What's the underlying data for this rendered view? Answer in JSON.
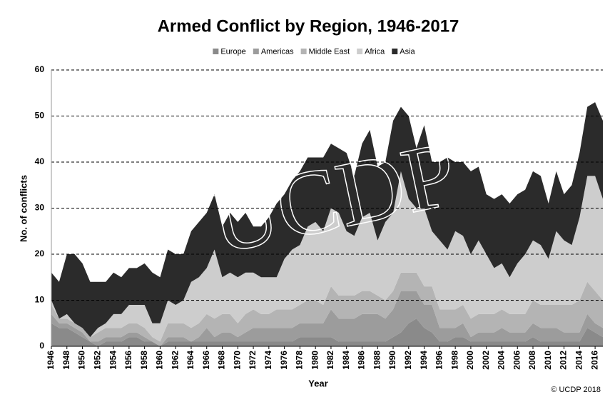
{
  "chart_data": {
    "type": "stacked_area",
    "title": "Armed Conflict by Region, 1946-2017",
    "x_label": "Year",
    "y_label": "No. of conflicts",
    "watermark": "UCDP",
    "credit": "© UCDP 2018",
    "legend": "top",
    "grid": true,
    "x": [
      1946,
      1947,
      1948,
      1949,
      1950,
      1951,
      1952,
      1953,
      1954,
      1955,
      1956,
      1957,
      1958,
      1959,
      1960,
      1961,
      1962,
      1963,
      1964,
      1965,
      1966,
      1967,
      1968,
      1969,
      1970,
      1971,
      1972,
      1973,
      1974,
      1975,
      1976,
      1977,
      1978,
      1979,
      1980,
      1981,
      1982,
      1983,
      1984,
      1985,
      1986,
      1987,
      1988,
      1989,
      1990,
      1991,
      1992,
      1993,
      1994,
      1995,
      1996,
      1997,
      1998,
      1999,
      2000,
      2001,
      2002,
      2003,
      2004,
      2005,
      2006,
      2007,
      2008,
      2009,
      2010,
      2011,
      2012,
      2013,
      2014,
      2015,
      2016,
      2017
    ],
    "xlim": [
      1946,
      2017
    ],
    "xticks": [
      1946,
      1948,
      1950,
      1952,
      1954,
      1956,
      1958,
      1960,
      1962,
      1964,
      1966,
      1968,
      1970,
      1972,
      1974,
      1976,
      1978,
      1980,
      1982,
      1984,
      1986,
      1988,
      1990,
      1992,
      1994,
      1996,
      1998,
      2000,
      2002,
      2004,
      2006,
      2008,
      2010,
      2012,
      2014,
      2016
    ],
    "ylim": [
      0,
      60
    ],
    "yticks": [
      0,
      10,
      20,
      30,
      40,
      50,
      60
    ],
    "series": [
      {
        "name": "Europe",
        "color": "#8a8a8a",
        "values": [
          5,
          4,
          4,
          3,
          2,
          1,
          0,
          1,
          1,
          1,
          2,
          2,
          1,
          1,
          0,
          1,
          1,
          1,
          1,
          1,
          1,
          1,
          1,
          1,
          1,
          1,
          1,
          1,
          1,
          1,
          1,
          1,
          2,
          2,
          2,
          2,
          2,
          1,
          1,
          1,
          1,
          1,
          1,
          1,
          2,
          3,
          5,
          6,
          4,
          3,
          1,
          1,
          2,
          2,
          1,
          1,
          1,
          1,
          1,
          1,
          1,
          1,
          2,
          1,
          1,
          1,
          1,
          1,
          1,
          4,
          3,
          2
        ]
      },
      {
        "name": "Americas",
        "color": "#9c9c9c",
        "values": [
          2,
          1,
          1,
          1,
          1,
          0,
          1,
          1,
          1,
          1,
          1,
          1,
          1,
          0,
          0,
          1,
          1,
          1,
          0,
          1,
          3,
          1,
          2,
          2,
          1,
          2,
          3,
          3,
          3,
          3,
          3,
          3,
          3,
          3,
          3,
          3,
          6,
          5,
          5,
          5,
          6,
          6,
          6,
          5,
          6,
          9,
          7,
          6,
          5,
          6,
          3,
          3,
          2,
          3,
          1,
          2,
          2,
          2,
          3,
          2,
          2,
          2,
          3,
          3,
          3,
          3,
          2,
          2,
          2,
          3,
          2,
          2
        ]
      },
      {
        "name": "Middle East",
        "color": "#b4b4b4",
        "values": [
          2,
          1,
          1,
          1,
          1,
          1,
          2,
          2,
          2,
          2,
          2,
          2,
          2,
          1,
          1,
          3,
          3,
          3,
          3,
          3,
          3,
          4,
          4,
          4,
          3,
          4,
          4,
          3,
          3,
          4,
          4,
          4,
          4,
          5,
          5,
          4,
          5,
          5,
          5,
          5,
          5,
          5,
          4,
          4,
          4,
          4,
          4,
          4,
          4,
          4,
          4,
          4,
          4,
          4,
          4,
          4,
          4,
          4,
          4,
          4,
          4,
          4,
          5,
          5,
          5,
          5,
          6,
          6,
          7,
          7,
          7,
          6
        ]
      },
      {
        "name": "Africa",
        "color": "#cdcdcd",
        "values": [
          1,
          0,
          1,
          0,
          0,
          0,
          1,
          1,
          3,
          3,
          4,
          4,
          5,
          3,
          4,
          5,
          4,
          5,
          10,
          10,
          10,
          15,
          8,
          9,
          10,
          9,
          8,
          8,
          8,
          7,
          11,
          13,
          13,
          16,
          17,
          16,
          17,
          18,
          14,
          13,
          16,
          17,
          12,
          17,
          17,
          22,
          16,
          14,
          17,
          12,
          15,
          13,
          17,
          15,
          14,
          16,
          13,
          10,
          10,
          8,
          11,
          13,
          13,
          13,
          10,
          16,
          14,
          13,
          18,
          23,
          25,
          22
        ]
      },
      {
        "name": "Asia",
        "color": "#2b2b2b",
        "values": [
          6,
          8,
          13,
          15,
          14,
          12,
          10,
          9,
          9,
          8,
          8,
          8,
          9,
          11,
          10,
          11,
          11,
          10,
          11,
          12,
          12,
          12,
          11,
          13,
          12,
          13,
          10,
          11,
          13,
          16,
          14,
          15,
          16,
          15,
          14,
          16,
          14,
          14,
          17,
          13,
          16,
          18,
          16,
          13,
          20,
          14,
          18,
          13,
          18,
          15,
          17,
          20,
          15,
          16,
          18,
          16,
          13,
          15,
          15,
          16,
          15,
          14,
          15,
          15,
          12,
          13,
          10,
          13,
          14,
          15,
          16,
          17
        ]
      }
    ]
  }
}
